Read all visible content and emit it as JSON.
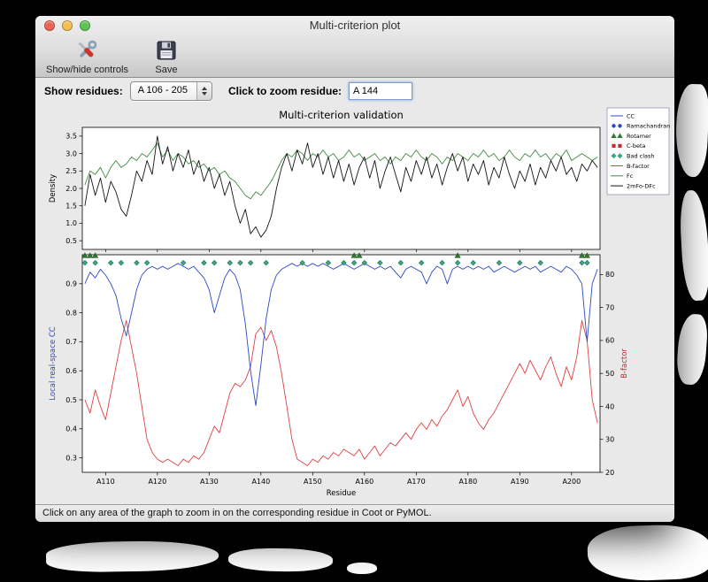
{
  "window": {
    "title": "Multi-criterion plot",
    "traffic_lights": {
      "close": "#ec6255",
      "minimize": "#f5bf4f",
      "zoom": "#5fc454"
    }
  },
  "toolbar": {
    "items": [
      {
        "label": "Show/hide controls",
        "icon": "tools-icon"
      },
      {
        "label": "Save",
        "icon": "floppy-icon"
      }
    ]
  },
  "controls": {
    "show_residues_label": "Show residues:",
    "residue_range_value": "A 106 - 205",
    "zoom_label": "Click to zoom residue:",
    "zoom_value": "A 144"
  },
  "status_bar": {
    "text": "Click on any area of the graph to zoom in on the corresponding residue in Coot or PyMOL."
  },
  "chart_data": {
    "type": "line",
    "title": "Multi-criterion validation",
    "xlabel": "Residue",
    "x_start": 106,
    "x_end": 205,
    "xtick_values": [
      110,
      120,
      130,
      140,
      150,
      160,
      170,
      180,
      190,
      200
    ],
    "xtick_labels": [
      "A110",
      "A120",
      "A130",
      "A140",
      "A150",
      "A160",
      "A170",
      "A180",
      "A190",
      "A200"
    ],
    "panels": [
      {
        "name": "density",
        "ylabel": "Density",
        "ylabel_color": "#000000",
        "ylim": [
          0.25,
          3.75
        ],
        "yticks": [
          0.5,
          1.0,
          1.5,
          2.0,
          2.5,
          3.0,
          3.5
        ],
        "series": [
          {
            "name": "Fc",
            "color": "#3d8c3d",
            "values": [
              2.1,
              2.5,
              2.4,
              2.6,
              2.3,
              2.6,
              2.8,
              2.6,
              2.7,
              2.9,
              2.8,
              3.0,
              2.9,
              3.1,
              3.3,
              2.9,
              3.1,
              2.8,
              3.0,
              2.9,
              2.7,
              2.8,
              2.6,
              2.7,
              2.5,
              2.6,
              2.4,
              2.5,
              2.3,
              2.2,
              2.0,
              1.8,
              1.7,
              1.9,
              1.8,
              2.0,
              2.2,
              2.5,
              2.8,
              3.0,
              2.9,
              3.1,
              3.0,
              2.8,
              3.0,
              2.9,
              3.1,
              2.9,
              3.0,
              2.8,
              2.9,
              3.1,
              2.9,
              3.0,
              2.8,
              2.9,
              3.0,
              2.8,
              2.9,
              2.7,
              2.9,
              2.8,
              3.0,
              2.9,
              3.1,
              2.9,
              2.8,
              3.0,
              2.9,
              2.7,
              2.9,
              2.8,
              3.0,
              2.9,
              2.8,
              3.0,
              2.9,
              3.1,
              2.9,
              3.0,
              2.8,
              2.9,
              3.1,
              2.9,
              2.8,
              3.0,
              2.9,
              3.1,
              2.9,
              3.0,
              2.8,
              3.0,
              2.9,
              3.1,
              2.8,
              2.9,
              3.0,
              2.9,
              2.8,
              2.9
            ]
          },
          {
            "name": "2mFo-DFc",
            "color": "#151515",
            "values": [
              1.5,
              2.4,
              1.8,
              2.3,
              1.6,
              2.2,
              1.9,
              1.4,
              1.2,
              1.8,
              2.5,
              2.2,
              2.8,
              2.4,
              3.5,
              2.7,
              3.2,
              2.5,
              3.0,
              2.6,
              3.1,
              2.4,
              2.8,
              2.2,
              2.6,
              2.0,
              2.4,
              1.8,
              2.2,
              1.5,
              1.0,
              1.4,
              0.7,
              0.9,
              0.6,
              0.8,
              1.2,
              2.0,
              2.6,
              3.0,
              2.5,
              3.1,
              2.7,
              3.3,
              2.6,
              3.0,
              2.4,
              2.9,
              2.3,
              2.8,
              2.2,
              2.7,
              2.1,
              2.6,
              2.9,
              2.3,
              2.8,
              2.0,
              2.5,
              2.9,
              2.4,
              1.9,
              2.6,
              2.2,
              2.8,
              2.4,
              2.9,
              2.3,
              2.7,
              2.1,
              2.6,
              3.0,
              2.5,
              2.9,
              2.2,
              2.7,
              2.4,
              2.8,
              2.1,
              2.6,
              2.3,
              2.9,
              2.4,
              2.0,
              2.5,
              2.2,
              2.7,
              2.1,
              2.6,
              2.3,
              2.8,
              2.5,
              2.9,
              2.4,
              2.6,
              2.2,
              2.7,
              2.5,
              2.8,
              2.6
            ]
          }
        ]
      },
      {
        "name": "cc_bfactor",
        "ylabel_left": "Local real-space CC",
        "ylabel_left_color": "#2b49c6",
        "ylim_left": [
          0.25,
          1.0
        ],
        "yticks_left": [
          0.3,
          0.4,
          0.5,
          0.6,
          0.7,
          0.8,
          0.9
        ],
        "ylabel_right": "B-factor",
        "ylabel_right_color": "#cc2a2a",
        "ylim_right": [
          20,
          86
        ],
        "yticks_right": [
          20,
          30,
          40,
          50,
          60,
          70,
          80
        ],
        "series_left": [
          {
            "name": "CC",
            "color": "#2b49c6",
            "values": [
              0.9,
              0.94,
              0.92,
              0.95,
              0.93,
              0.9,
              0.86,
              0.78,
              0.72,
              0.8,
              0.88,
              0.93,
              0.95,
              0.96,
              0.95,
              0.96,
              0.95,
              0.96,
              0.97,
              0.96,
              0.95,
              0.96,
              0.94,
              0.92,
              0.88,
              0.8,
              0.86,
              0.92,
              0.95,
              0.93,
              0.88,
              0.76,
              0.6,
              0.48,
              0.62,
              0.78,
              0.88,
              0.93,
              0.95,
              0.96,
              0.97,
              0.96,
              0.97,
              0.96,
              0.97,
              0.96,
              0.97,
              0.96,
              0.95,
              0.96,
              0.97,
              0.96,
              0.95,
              0.96,
              0.97,
              0.96,
              0.95,
              0.96,
              0.95,
              0.96,
              0.94,
              0.92,
              0.95,
              0.96,
              0.95,
              0.94,
              0.9,
              0.94,
              0.96,
              0.95,
              0.9,
              0.95,
              0.96,
              0.95,
              0.96,
              0.95,
              0.96,
              0.95,
              0.96,
              0.94,
              0.95,
              0.96,
              0.95,
              0.94,
              0.95,
              0.96,
              0.95,
              0.96,
              0.94,
              0.95,
              0.96,
              0.95,
              0.94,
              0.96,
              0.95,
              0.93,
              0.9,
              0.7,
              0.9,
              0.95
            ]
          }
        ],
        "series_right": [
          {
            "name": "B-factor",
            "color": "#e04040",
            "values": [
              42,
              38,
              45,
              40,
              36,
              44,
              52,
              60,
              66,
              58,
              50,
              40,
              30,
              26,
              24,
              23,
              24,
              23,
              22,
              24,
              23,
              25,
              24,
              26,
              30,
              34,
              32,
              38,
              44,
              47,
              46,
              48,
              52,
              62,
              64,
              60,
              63,
              58,
              50,
              40,
              30,
              24,
              23,
              22,
              24,
              23,
              25,
              24,
              26,
              25,
              27,
              26,
              25,
              27,
              24,
              26,
              28,
              25,
              27,
              29,
              28,
              30,
              32,
              30,
              33,
              35,
              33,
              36,
              34,
              37,
              39,
              42,
              45,
              40,
              43,
              38,
              35,
              33,
              36,
              38,
              41,
              44,
              47,
              50,
              53,
              50,
              54,
              51,
              48,
              52,
              55,
              50,
              46,
              52,
              48,
              55,
              66,
              60,
              42,
              35
            ]
          }
        ],
        "markers": [
          {
            "name": "Bad clash",
            "shape": "diamond",
            "color": "#3fa583",
            "edge_color": "#1e6b52",
            "y_value": 0.972,
            "residues": [
              106,
              108,
              111,
              113,
              116,
              118,
              125,
              129,
              131,
              134,
              136,
              138,
              141,
              148,
              153,
              156,
              158,
              160,
              163,
              167,
              171,
              175,
              178,
              181,
              186,
              190,
              194,
              202,
              203
            ]
          },
          {
            "name": "Rotamer",
            "shape": "triangle",
            "color": "#2e7d2e",
            "edge_color": "#174f17",
            "y_value": 0.997,
            "residues": [
              106,
              107,
              108,
              158,
              159,
              178,
              202,
              203
            ]
          }
        ]
      }
    ],
    "legend": {
      "position": "upper right",
      "entries": [
        {
          "label": "CC",
          "glyph": "line",
          "color": "#2b49c6"
        },
        {
          "label": "Ramachandran",
          "glyph": "circle",
          "color": "#2b49c6"
        },
        {
          "label": "Rotamer",
          "glyph": "triangle",
          "color": "#2e7d2e"
        },
        {
          "label": "C-beta",
          "glyph": "square",
          "color": "#c03030"
        },
        {
          "label": "Bad clash",
          "glyph": "diamond",
          "color": "#3fa583"
        },
        {
          "label": "B-factor",
          "glyph": "line",
          "color": "#e04040"
        },
        {
          "label": "Fc",
          "glyph": "line",
          "color": "#3d8c3d"
        },
        {
          "label": "2mFo-DFc",
          "glyph": "line",
          "color": "#151515"
        }
      ]
    }
  }
}
